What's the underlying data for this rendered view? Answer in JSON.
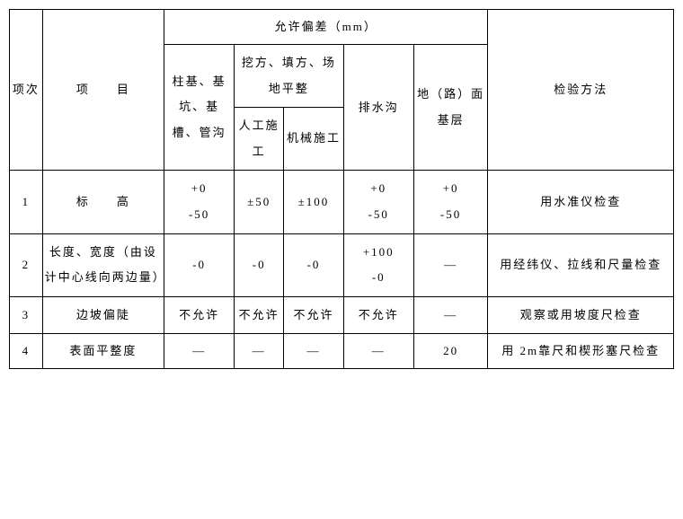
{
  "header": {
    "idx": "项次",
    "item": "项　　目",
    "tolerance_group": "允许偏差（mm）",
    "pile": "柱基、基坑、基槽、管沟",
    "excavation_group": "挖方、填方、场地平整",
    "manual": "人工施工",
    "mech": "机械施工",
    "drain": "排水沟",
    "base": "地（路）面基层",
    "method": "检验方法"
  },
  "rows": [
    {
      "idx": "1",
      "item": "标　　高",
      "pile": "+0\n-50",
      "manual": "±50",
      "mech": "±100",
      "drain": "+0\n-50",
      "base": "+0\n-50",
      "method": "用水准仪检查"
    },
    {
      "idx": "2",
      "item": "长度、宽度（由设计中心线向两边量）",
      "pile": "-0",
      "manual": "-0",
      "mech": "-0",
      "drain": "+100\n-0",
      "base": "—",
      "method": "用经纬仪、拉线和尺量检查"
    },
    {
      "idx": "3",
      "item": "边坡偏陡",
      "pile": "不允许",
      "manual": "不允许",
      "mech": "不允许",
      "drain": "不允许",
      "base": "—",
      "method": "观察或用坡度尺检查"
    },
    {
      "idx": "4",
      "item": "表面平整度",
      "pile": "—",
      "manual": "—",
      "mech": "—",
      "drain": "—",
      "base": "20",
      "method": "用 2m靠尺和楔形塞尺检查"
    }
  ]
}
